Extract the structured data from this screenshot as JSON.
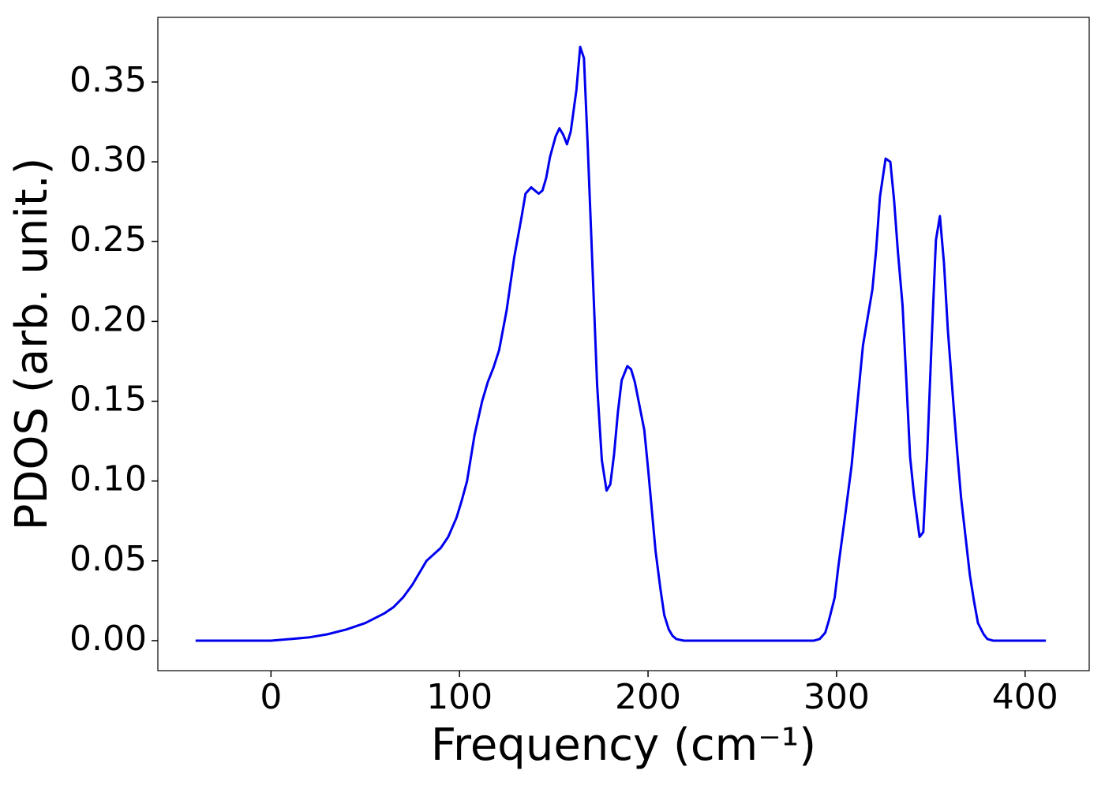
{
  "chart_data": {
    "type": "line",
    "xlabel": "Frequency (cm⁻¹)",
    "ylabel": "PDOS (arb. unit.)",
    "xlim": [
      -60,
      434
    ],
    "ylim": [
      -0.0188,
      0.3905
    ],
    "xticks": [
      0,
      100,
      200,
      300,
      400
    ],
    "yticks": [
      {
        "value": 0,
        "label": "0.00"
      },
      {
        "value": 0.05,
        "label": "0.05"
      },
      {
        "value": 0.1,
        "label": "0.10"
      },
      {
        "value": 0.15,
        "label": "0.15"
      },
      {
        "value": 0.2,
        "label": "0.20"
      },
      {
        "value": 0.25,
        "label": "0.25"
      },
      {
        "value": 0.3,
        "label": "0.30"
      },
      {
        "value": 0.35,
        "label": "0.35"
      }
    ],
    "grid": false,
    "color": "#0000ee",
    "x": [
      -40,
      0,
      10,
      20,
      30,
      40,
      50,
      60,
      65,
      70,
      75,
      82.5,
      90,
      94,
      98.4,
      101,
      104,
      108,
      112,
      115,
      118,
      121,
      125,
      129,
      133,
      135,
      138,
      142,
      144,
      146,
      148,
      151,
      153,
      155,
      157,
      159,
      162,
      164,
      166,
      168,
      173,
      175.5,
      178,
      180,
      182,
      184,
      186,
      189,
      191,
      193,
      195,
      198,
      200,
      202,
      204,
      206.5,
      208.6,
      211,
      213,
      215,
      219,
      288,
      291,
      294,
      296,
      299,
      301,
      304.5,
      308,
      311,
      314,
      319,
      321,
      323,
      326,
      328.5,
      330.5,
      332.5,
      335,
      337,
      339,
      341,
      344,
      346,
      348,
      350.5,
      352.7,
      354.8,
      357,
      359,
      362,
      364,
      366,
      368.6,
      370.7,
      373,
      375,
      378,
      380,
      383,
      411
    ],
    "values": [
      0,
      0,
      0.001,
      0.002,
      0.004,
      0.007,
      0.011,
      0.017,
      0.021,
      0.027,
      0.035,
      0.05,
      0.058,
      0.065,
      0.077,
      0.087,
      0.1,
      0.129,
      0.15,
      0.162,
      0.171,
      0.182,
      0.207,
      0.24,
      0.266,
      0.28,
      0.284,
      0.28,
      0.282,
      0.29,
      0.303,
      0.316,
      0.321,
      0.317,
      0.311,
      0.319,
      0.345,
      0.372,
      0.365,
      0.31,
      0.16,
      0.113,
      0.094,
      0.098,
      0.117,
      0.143,
      0.163,
      0.172,
      0.17,
      0.162,
      0.15,
      0.132,
      0.108,
      0.082,
      0.056,
      0.033,
      0.016,
      0.007,
      0.003,
      0.001,
      0,
      0,
      0.001,
      0.005,
      0.013,
      0.027,
      0.047,
      0.078,
      0.11,
      0.148,
      0.185,
      0.22,
      0.245,
      0.278,
      0.302,
      0.3,
      0.276,
      0.244,
      0.21,
      0.163,
      0.115,
      0.092,
      0.065,
      0.068,
      0.115,
      0.19,
      0.251,
      0.266,
      0.236,
      0.195,
      0.148,
      0.118,
      0.09,
      0.063,
      0.041,
      0.024,
      0.011,
      0.004,
      0.001,
      0,
      0
    ]
  }
}
